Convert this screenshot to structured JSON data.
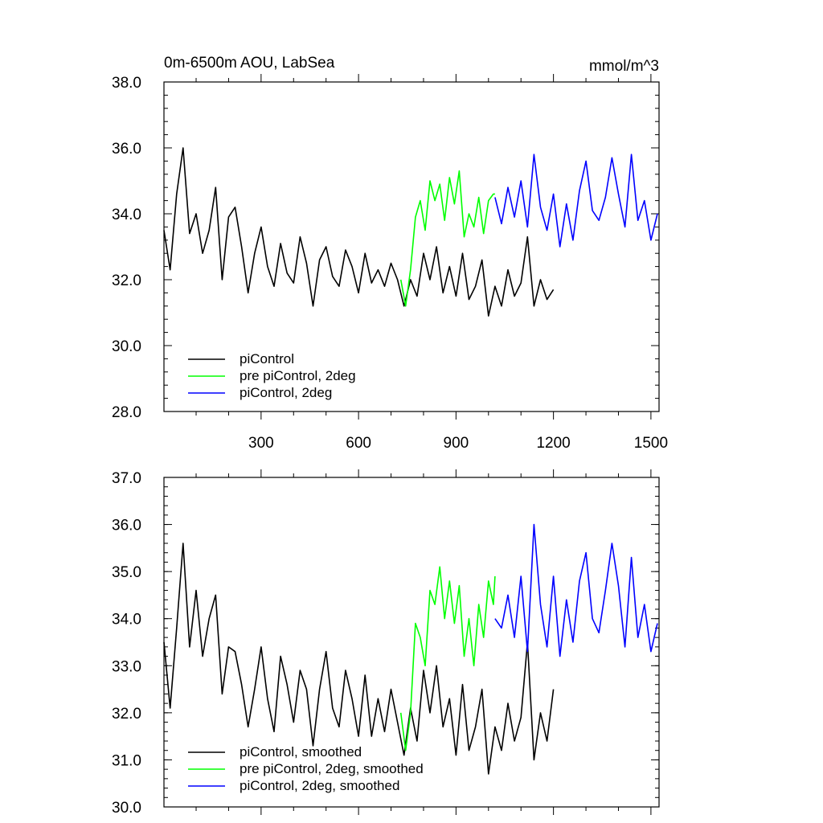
{
  "chart_data": [
    {
      "type": "line",
      "title": "0m-6500m AOU, LabSea",
      "units": "mmol/m^3",
      "xlim": [
        1,
        1525
      ],
      "ylim": [
        28,
        38
      ],
      "xticks": [
        300,
        600,
        900,
        1200,
        1500
      ],
      "yticks": [
        28,
        30,
        32,
        34,
        36,
        38
      ],
      "ytick_labels": [
        "28.0",
        "30.0",
        "32.0",
        "34.0",
        "36.0",
        "38.0"
      ],
      "xtick_labels": [
        "300",
        "600",
        "900",
        "1200",
        "1500"
      ],
      "legend_position": "bottom-left",
      "series": [
        {
          "name": "piControl",
          "color": "#000000",
          "x": [
            1,
            20,
            40,
            60,
            80,
            100,
            120,
            140,
            160,
            180,
            200,
            220,
            240,
            260,
            280,
            300,
            320,
            340,
            360,
            380,
            400,
            420,
            440,
            460,
            480,
            500,
            520,
            540,
            560,
            580,
            600,
            620,
            640,
            660,
            680,
            700,
            720,
            740,
            760,
            780,
            800,
            820,
            840,
            860,
            880,
            900,
            920,
            940,
            960,
            980,
            1000,
            1020,
            1040,
            1060,
            1080,
            1100,
            1120,
            1140,
            1160,
            1180,
            1200
          ],
          "values": [
            33.5,
            32.3,
            34.6,
            36.0,
            33.4,
            34.0,
            32.8,
            33.5,
            34.8,
            32.0,
            33.9,
            34.2,
            33.0,
            31.6,
            32.8,
            33.6,
            32.4,
            31.8,
            33.1,
            32.2,
            31.9,
            33.3,
            32.5,
            31.2,
            32.6,
            33.0,
            32.1,
            31.8,
            32.9,
            32.4,
            31.6,
            32.8,
            31.9,
            32.3,
            31.8,
            32.5,
            32.0,
            31.2,
            32.0,
            31.5,
            32.8,
            32.0,
            33.0,
            31.6,
            32.4,
            31.5,
            32.8,
            31.4,
            31.8,
            32.6,
            30.9,
            31.8,
            31.2,
            32.3,
            31.5,
            31.9,
            33.3,
            31.2,
            32.0,
            31.4,
            31.7
          ]
        },
        {
          "name": "pre piControl, 2deg",
          "color": "#00ff00",
          "x": [
            730,
            745,
            760,
            775,
            790,
            805,
            820,
            835,
            850,
            865,
            880,
            895,
            910,
            925,
            940,
            955,
            970,
            985,
            1000,
            1015,
            1020
          ],
          "values": [
            32.0,
            31.2,
            32.3,
            33.9,
            34.4,
            33.5,
            35.0,
            34.4,
            34.9,
            33.8,
            35.1,
            34.3,
            35.3,
            33.3,
            34.0,
            33.6,
            34.5,
            33.4,
            34.4,
            34.6,
            34.6
          ]
        },
        {
          "name": "piControl, 2deg",
          "color": "#0000ff",
          "x": [
            1020,
            1040,
            1060,
            1080,
            1100,
            1120,
            1140,
            1160,
            1180,
            1200,
            1220,
            1240,
            1260,
            1280,
            1300,
            1320,
            1340,
            1360,
            1380,
            1400,
            1420,
            1440,
            1460,
            1480,
            1500,
            1520
          ],
          "values": [
            34.5,
            33.7,
            34.8,
            33.9,
            35.0,
            33.6,
            35.8,
            34.2,
            33.5,
            34.6,
            33.0,
            34.3,
            33.2,
            34.7,
            35.6,
            34.1,
            33.8,
            34.5,
            35.7,
            34.6,
            33.6,
            35.8,
            33.8,
            34.4,
            33.2,
            34.0
          ]
        }
      ]
    },
    {
      "type": "line",
      "title": "",
      "xlim": [
        1,
        1525
      ],
      "ylim": [
        30,
        37
      ],
      "xticks": [
        300,
        600,
        900,
        1200,
        1500
      ],
      "yticks": [
        30,
        31,
        32,
        33,
        34,
        35,
        36,
        37
      ],
      "ytick_labels": [
        "30.0",
        "31.0",
        "32.0",
        "33.0",
        "34.0",
        "35.0",
        "36.0",
        "37.0"
      ],
      "legend_position": "bottom-left",
      "series": [
        {
          "name": "piControl, smoothed",
          "color": "#000000",
          "x": [
            1,
            20,
            40,
            60,
            80,
            100,
            120,
            140,
            160,
            180,
            200,
            220,
            240,
            260,
            280,
            300,
            320,
            340,
            360,
            380,
            400,
            420,
            440,
            460,
            480,
            500,
            520,
            540,
            560,
            580,
            600,
            620,
            640,
            660,
            680,
            700,
            720,
            740,
            760,
            780,
            800,
            820,
            840,
            860,
            880,
            900,
            920,
            940,
            960,
            980,
            1000,
            1020,
            1040,
            1060,
            1080,
            1100,
            1120,
            1140,
            1160,
            1180,
            1200
          ],
          "values": [
            33.5,
            32.1,
            33.8,
            35.6,
            33.4,
            34.6,
            33.2,
            34.0,
            34.5,
            32.4,
            33.4,
            33.3,
            32.6,
            31.7,
            32.5,
            33.4,
            32.3,
            31.6,
            33.2,
            32.6,
            31.8,
            32.9,
            32.5,
            31.3,
            32.5,
            33.3,
            32.1,
            31.7,
            32.9,
            32.3,
            31.5,
            32.8,
            31.5,
            32.3,
            31.6,
            32.5,
            31.8,
            31.1,
            32.1,
            31.4,
            32.9,
            32.0,
            33.0,
            31.7,
            32.3,
            31.1,
            32.6,
            31.2,
            31.7,
            32.5,
            30.7,
            31.7,
            31.2,
            32.2,
            31.4,
            31.9,
            33.5,
            31.0,
            32.0,
            31.4,
            32.5
          ]
        },
        {
          "name": "pre piControl, 2deg, smoothed",
          "color": "#00ff00",
          "x": [
            730,
            745,
            760,
            775,
            790,
            805,
            820,
            835,
            850,
            865,
            880,
            895,
            910,
            925,
            940,
            955,
            970,
            985,
            1000,
            1015,
            1020
          ],
          "values": [
            32.0,
            31.2,
            32.0,
            33.9,
            33.6,
            33.0,
            34.6,
            34.3,
            35.1,
            34.0,
            34.8,
            33.9,
            34.7,
            33.2,
            34.0,
            33.0,
            34.3,
            33.6,
            34.8,
            34.3,
            34.9
          ]
        },
        {
          "name": "piControl, 2deg, smoothed",
          "color": "#0000ff",
          "x": [
            1020,
            1040,
            1060,
            1080,
            1100,
            1120,
            1140,
            1160,
            1180,
            1200,
            1220,
            1240,
            1260,
            1280,
            1300,
            1320,
            1340,
            1360,
            1380,
            1400,
            1420,
            1440,
            1460,
            1480,
            1500,
            1520
          ],
          "values": [
            34.0,
            33.8,
            34.5,
            33.6,
            34.9,
            33.3,
            36.0,
            34.3,
            33.4,
            34.9,
            33.2,
            34.4,
            33.5,
            34.8,
            35.4,
            34.0,
            33.7,
            34.6,
            35.6,
            34.7,
            33.4,
            35.3,
            33.6,
            34.3,
            33.3,
            33.9
          ]
        }
      ]
    }
  ]
}
